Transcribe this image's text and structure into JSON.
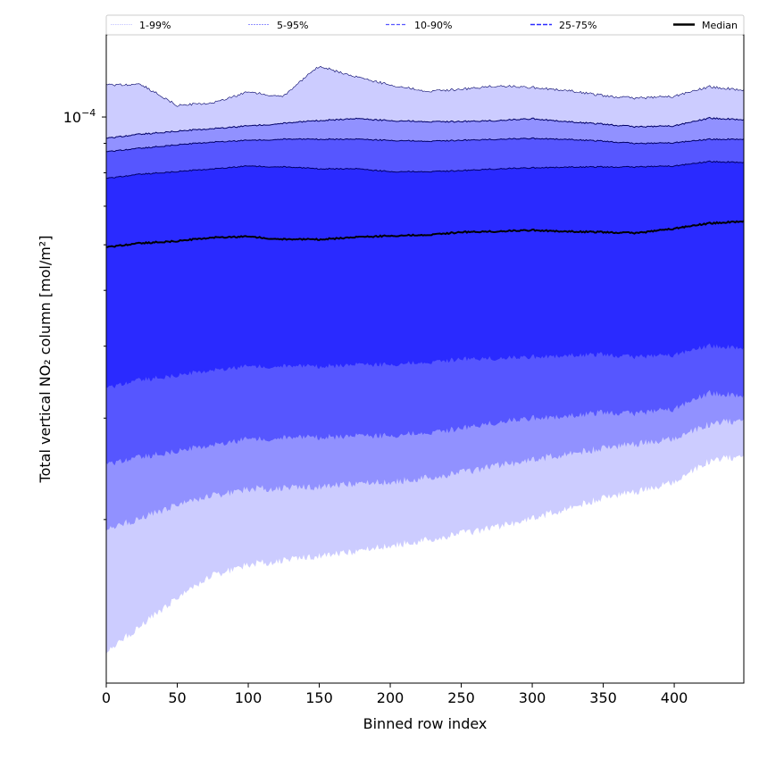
{
  "chart_data": {
    "type": "area",
    "title": "",
    "xlabel": "Binned row index",
    "ylabel": "Total vertical NO₂ column [mol/m²]",
    "xlim": [
      0,
      449
    ],
    "ylim": [
      1.04e-05,
      0.0001389
    ],
    "yscale": "log",
    "value_unit_multiplier": 1e-05,
    "x_ticks": [
      0,
      50,
      100,
      150,
      200,
      250,
      300,
      350,
      400
    ],
    "x_tick_labels": [
      "0",
      "50",
      "100",
      "150",
      "200",
      "250",
      "300",
      "350",
      "400"
    ],
    "y_major_tick": {
      "value": 0.0001,
      "label_base": "10",
      "label_exp": "−4"
    },
    "y_minor_ticks": [
      2e-05,
      3e-05,
      4e-05,
      5e-05,
      6e-05,
      7e-05,
      8e-05,
      9e-05
    ],
    "legend_placement": "top (above plot)",
    "x": [
      0,
      25,
      50,
      75,
      100,
      125,
      150,
      175,
      200,
      225,
      250,
      275,
      300,
      325,
      350,
      375,
      400,
      425,
      449
    ],
    "percentiles": {
      "p99": [
        11.37,
        11.37,
        10.47,
        10.59,
        11.05,
        10.86,
        12.26,
        11.74,
        11.37,
        11.09,
        11.17,
        11.33,
        11.25,
        11.13,
        10.89,
        10.78,
        10.86,
        11.29,
        11.13
      ],
      "p95": [
        9.18,
        9.34,
        9.45,
        9.55,
        9.65,
        9.75,
        9.86,
        9.93,
        9.86,
        9.82,
        9.82,
        9.86,
        9.93,
        9.82,
        9.72,
        9.61,
        9.65,
        9.96,
        9.89
      ],
      "p90": [
        8.7,
        8.83,
        8.95,
        9.05,
        9.11,
        9.15,
        9.15,
        9.15,
        9.11,
        9.08,
        9.11,
        9.15,
        9.18,
        9.15,
        9.08,
        8.99,
        9.02,
        9.15,
        9.15
      ],
      "p75": [
        7.82,
        7.96,
        8.04,
        8.13,
        8.22,
        8.19,
        8.13,
        8.13,
        8.04,
        8.04,
        8.07,
        8.13,
        8.16,
        8.19,
        8.19,
        8.19,
        8.22,
        8.37,
        8.34
      ],
      "p50": [
        5.94,
        6.04,
        6.09,
        6.18,
        6.2,
        6.13,
        6.13,
        6.18,
        6.22,
        6.24,
        6.31,
        6.33,
        6.36,
        6.33,
        6.31,
        6.29,
        6.4,
        6.54,
        6.59
      ],
      "p25": [
        3.38,
        3.5,
        3.56,
        3.64,
        3.69,
        3.69,
        3.69,
        3.71,
        3.72,
        3.75,
        3.8,
        3.81,
        3.83,
        3.86,
        3.87,
        3.83,
        3.86,
        4.01,
        3.97
      ],
      "p10": [
        2.49,
        2.57,
        2.63,
        2.7,
        2.76,
        2.77,
        2.78,
        2.79,
        2.8,
        2.83,
        2.88,
        2.95,
        3.0,
        3.03,
        3.07,
        3.06,
        3.11,
        3.32,
        3.28
      ],
      "p5": [
        1.93,
        2.01,
        2.12,
        2.2,
        2.26,
        2.27,
        2.28,
        2.31,
        2.32,
        2.36,
        2.41,
        2.48,
        2.54,
        2.6,
        2.66,
        2.71,
        2.76,
        2.93,
        2.98
      ],
      "p1": [
        1.18,
        1.31,
        1.46,
        1.6,
        1.67,
        1.7,
        1.73,
        1.76,
        1.8,
        1.84,
        1.89,
        1.94,
        2.01,
        2.09,
        2.18,
        2.24,
        2.32,
        2.53,
        2.58
      ]
    },
    "series": [
      {
        "name": "1-99%",
        "lower": "p1",
        "upper": "p99",
        "color": "#ccccff"
      },
      {
        "name": "5-95%",
        "lower": "p5",
        "upper": "p95",
        "color": "#9191ff"
      },
      {
        "name": "10-90%",
        "lower": "p10",
        "upper": "p90",
        "color": "#5656ff"
      },
      {
        "name": "25-75%",
        "lower": "p25",
        "upper": "p75",
        "color": "#2a2aff"
      },
      {
        "name": "Median",
        "line": "p50",
        "color": "#000000"
      }
    ],
    "boundary_line_color": "#000066"
  }
}
